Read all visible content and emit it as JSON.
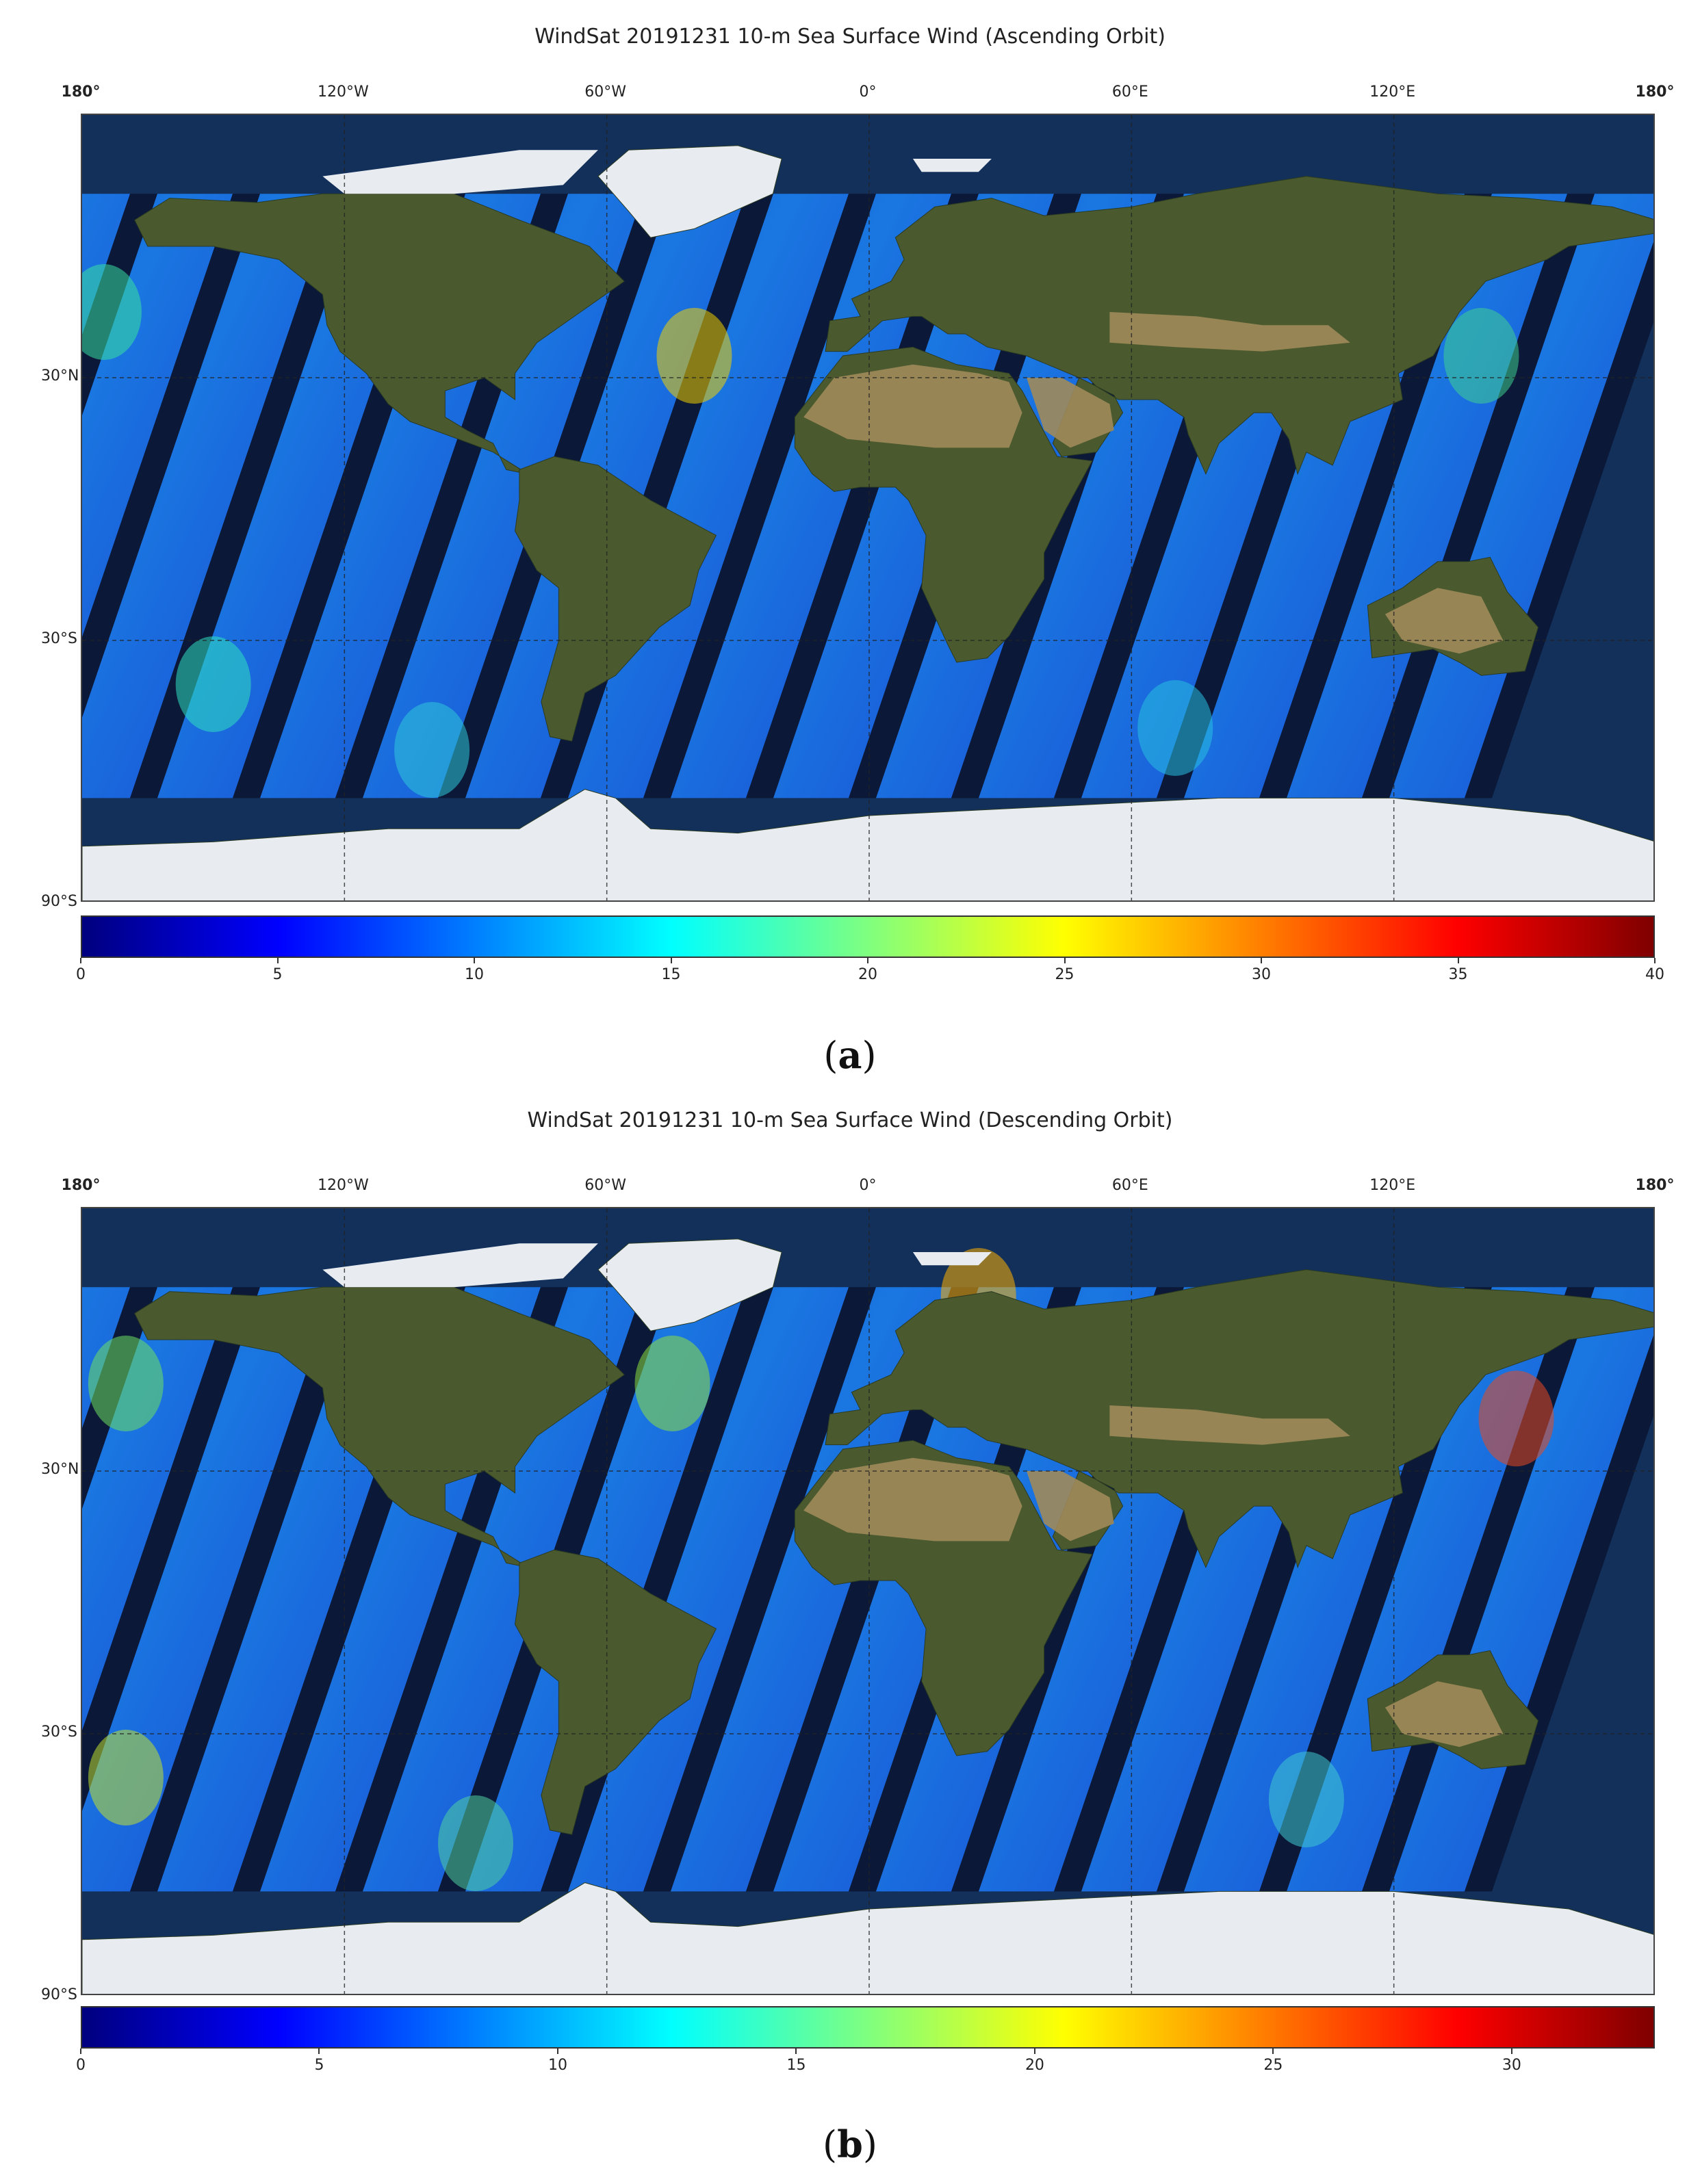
{
  "panels": [
    {
      "title": "WindSat 20191231 10-m Sea Surface Wind (Ascending Orbit)",
      "caption_letter": "a",
      "colorbar_ticks": [
        "0",
        "5",
        "10",
        "15",
        "20",
        "25",
        "30",
        "35",
        "40"
      ],
      "colorbar_range": [
        0,
        40
      ]
    },
    {
      "title": "WindSat 20191231 10-m Sea Surface Wind (Descending Orbit)",
      "caption_letter": "b",
      "colorbar_ticks": [
        "0",
        "5",
        "10",
        "15",
        "20",
        "25",
        "30"
      ],
      "colorbar_range": [
        0,
        33
      ]
    }
  ],
  "lon_labels": [
    "180°",
    "120°W",
    "60°W",
    "0°",
    "60°E",
    "120°E",
    "180°"
  ],
  "lon_values": [
    -180,
    -120,
    -60,
    0,
    60,
    120,
    180
  ],
  "lat_labels": [
    "30°N",
    "30°S",
    "90°S"
  ],
  "lat_values": [
    30,
    -30,
    -90
  ],
  "colormap": [
    "#00007f",
    "#0000ff",
    "#007fff",
    "#00ffff",
    "#7fff7f",
    "#ffff00",
    "#ff7f00",
    "#ff0000",
    "#7f0000"
  ],
  "colors": {
    "ocean": "#12305a",
    "swath": "#1a5fe0",
    "gap": "#0b1838",
    "land": "#4a5a2e",
    "desert": "#a08a5a",
    "ice": "#e8ecf0"
  }
}
